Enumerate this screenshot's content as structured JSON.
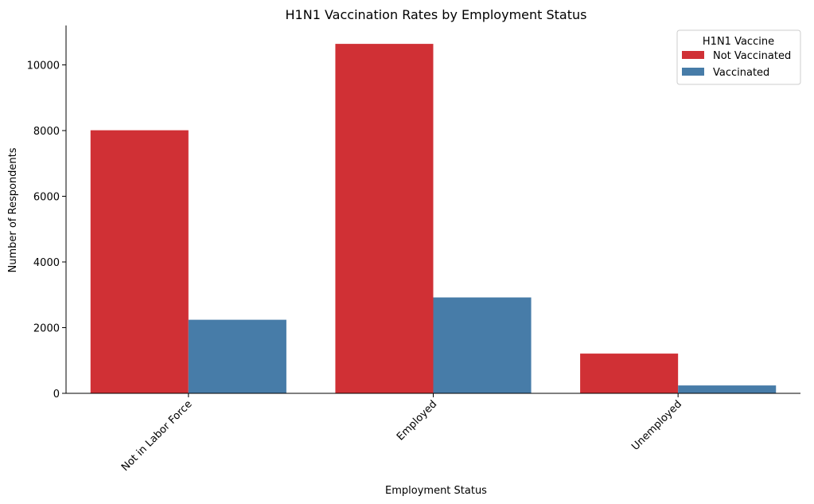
{
  "chart_data": {
    "type": "bar",
    "title": "H1N1 Vaccination Rates by Employment Status",
    "xlabel": "Employment Status",
    "ylabel": "Number of Respondents",
    "categories": [
      "Not in Labor Force",
      "Employed",
      "Unemployed"
    ],
    "series": [
      {
        "name": "Not Vaccinated",
        "values": [
          8010,
          10640,
          1210
        ],
        "color": "#d03035"
      },
      {
        "name": "Vaccinated",
        "values": [
          2240,
          2920,
          240
        ],
        "color": "#477ca8"
      }
    ],
    "yticks": [
      0,
      2000,
      4000,
      6000,
      8000,
      10000
    ],
    "ylim": [
      0,
      11200
    ],
    "legend": {
      "title": "H1N1 Vaccine",
      "position": "top-right"
    },
    "grid": false
  }
}
